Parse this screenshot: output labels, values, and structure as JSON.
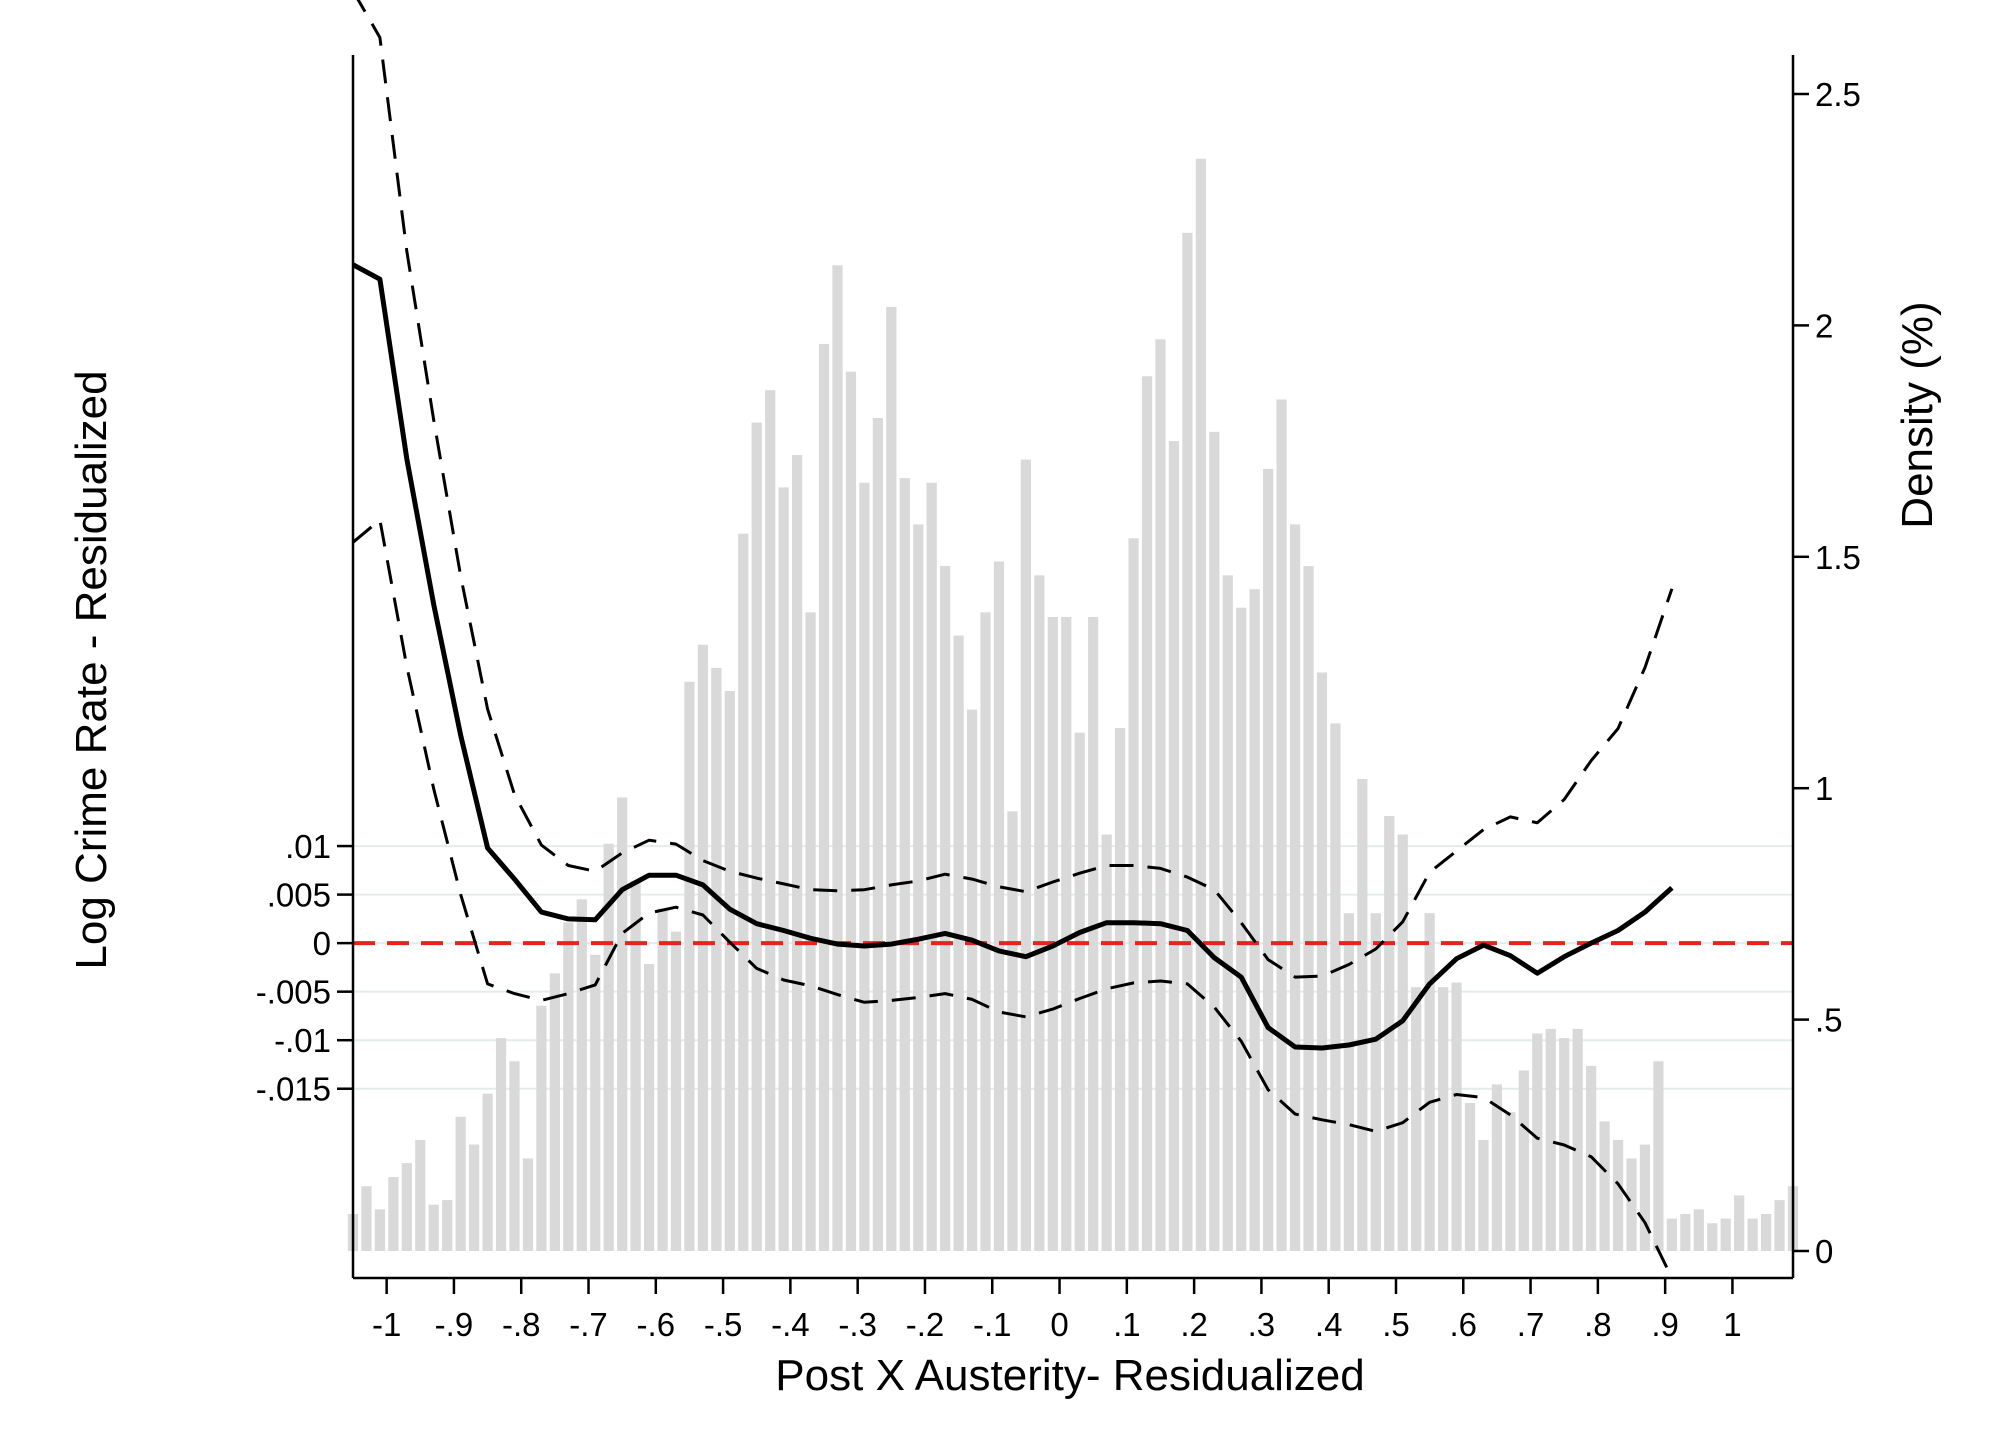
{
  "chart_data": {
    "type": "line",
    "xlabel": "Post X Austerity- Residualized",
    "ylabel": "Log Crime Rate - Residualized",
    "y2label": "Density (%)",
    "xlim": [
      -1.05,
      1.09
    ],
    "ylim": [
      -0.0345,
      0.0915
    ],
    "y2lim": [
      0,
      2.6
    ],
    "x_ticks": [
      {
        "value": -1,
        "label": "-1"
      },
      {
        "value": -0.9,
        "label": "-.9"
      },
      {
        "value": -0.8,
        "label": "-.8"
      },
      {
        "value": -0.7,
        "label": "-.7"
      },
      {
        "value": -0.6,
        "label": "-.6"
      },
      {
        "value": -0.5,
        "label": "-.5"
      },
      {
        "value": -0.4,
        "label": "-.4"
      },
      {
        "value": -0.3,
        "label": "-.3"
      },
      {
        "value": -0.2,
        "label": "-.2"
      },
      {
        "value": -0.1,
        "label": "-.1"
      },
      {
        "value": 0,
        "label": "0"
      },
      {
        "value": 0.1,
        "label": ".1"
      },
      {
        "value": 0.2,
        "label": ".2"
      },
      {
        "value": 0.3,
        "label": ".3"
      },
      {
        "value": 0.4,
        "label": ".4"
      },
      {
        "value": 0.5,
        "label": ".5"
      },
      {
        "value": 0.6,
        "label": ".6"
      },
      {
        "value": 0.7,
        "label": ".7"
      },
      {
        "value": 0.8,
        "label": ".8"
      },
      {
        "value": 0.9,
        "label": ".9"
      },
      {
        "value": 1,
        "label": "1"
      }
    ],
    "y_ticks": [
      {
        "value": 0.01,
        "label": ".01"
      },
      {
        "value": 0.005,
        "label": ".005"
      },
      {
        "value": 0,
        "label": "0"
      },
      {
        "value": -0.005,
        "label": "-.005"
      },
      {
        "value": -0.01,
        "label": "-.01"
      },
      {
        "value": -0.015,
        "label": "-.015"
      }
    ],
    "y2_ticks": [
      {
        "value": 0,
        "label": "0"
      },
      {
        "value": 0.5,
        "label": ".5"
      },
      {
        "value": 1,
        "label": "1"
      },
      {
        "value": 1.5,
        "label": "1.5"
      },
      {
        "value": 2,
        "label": "2"
      },
      {
        "value": 2.5,
        "label": "2.5"
      }
    ],
    "grid": "horizontal at left-axis ticks",
    "reference_line": {
      "y": 0,
      "color": "#e8221e",
      "style": "dashed"
    },
    "colors": {
      "estimate": "#000000",
      "ci": "#000000",
      "bars": "#d9d9d9",
      "grid": "#e3ecec"
    },
    "series": [
      {
        "role": "estimate",
        "style": "solid",
        "points": [
          [
            -1.05,
            0.0699
          ],
          [
            -1.01,
            0.0684
          ],
          [
            -0.97,
            0.0499
          ],
          [
            -0.93,
            0.0349
          ],
          [
            -0.89,
            0.0214
          ],
          [
            -0.85,
            0.0098
          ],
          [
            -0.81,
            0.0066
          ],
          [
            -0.77,
            0.0032
          ],
          [
            -0.73,
            0.0025
          ],
          [
            -0.69,
            0.0024
          ],
          [
            -0.65,
            0.0055
          ],
          [
            -0.61,
            0.007
          ],
          [
            -0.57,
            0.007
          ],
          [
            -0.53,
            0.006
          ],
          [
            -0.49,
            0.0035
          ],
          [
            -0.45,
            0.002
          ],
          [
            -0.41,
            0.0013
          ],
          [
            -0.37,
            0.0005
          ],
          [
            -0.33,
            -0.0001
          ],
          [
            -0.29,
            -0.0003
          ],
          [
            -0.25,
            -0.0001
          ],
          [
            -0.21,
            0.0004
          ],
          [
            -0.17,
            0.001
          ],
          [
            -0.13,
            0.0003
          ],
          [
            -0.09,
            -0.0008
          ],
          [
            -0.05,
            -0.0014
          ],
          [
            -0.01,
            -0.0003
          ],
          [
            0.03,
            0.0011
          ],
          [
            0.07,
            0.0021
          ],
          [
            0.11,
            0.0021
          ],
          [
            0.15,
            0.002
          ],
          [
            0.19,
            0.0013
          ],
          [
            0.23,
            -0.0015
          ],
          [
            0.27,
            -0.0035
          ],
          [
            0.31,
            -0.0087
          ],
          [
            0.35,
            -0.0107
          ],
          [
            0.39,
            -0.0108
          ],
          [
            0.43,
            -0.0105
          ],
          [
            0.47,
            -0.0099
          ],
          [
            0.51,
            -0.008
          ],
          [
            0.55,
            -0.0042
          ],
          [
            0.59,
            -0.0016
          ],
          [
            0.63,
            -0.0002
          ],
          [
            0.67,
            -0.0013
          ],
          [
            0.71,
            -0.0031
          ],
          [
            0.75,
            -0.0014
          ],
          [
            0.79,
            0
          ],
          [
            0.83,
            0.0013
          ],
          [
            0.87,
            0.0032
          ],
          [
            0.91,
            0.0057
          ]
        ]
      },
      {
        "role": "upper_ci",
        "style": "dashed",
        "points": [
          [
            -1.05,
            0.0981
          ],
          [
            -1.01,
            0.0933
          ],
          [
            -0.97,
            0.0713
          ],
          [
            -0.93,
            0.0539
          ],
          [
            -0.89,
            0.0378
          ],
          [
            -0.85,
            0.0241
          ],
          [
            -0.81,
            0.0153
          ],
          [
            -0.77,
            0.0101
          ],
          [
            -0.73,
            0.008
          ],
          [
            -0.69,
            0.0074
          ],
          [
            -0.65,
            0.0093
          ],
          [
            -0.61,
            0.0106
          ],
          [
            -0.57,
            0.0102
          ],
          [
            -0.53,
            0.0085
          ],
          [
            -0.49,
            0.0074
          ],
          [
            -0.45,
            0.0067
          ],
          [
            -0.41,
            0.0061
          ],
          [
            -0.37,
            0.0055
          ],
          [
            -0.33,
            0.0054
          ],
          [
            -0.29,
            0.0055
          ],
          [
            -0.25,
            0.006
          ],
          [
            -0.21,
            0.0064
          ],
          [
            -0.17,
            0.0071
          ],
          [
            -0.13,
            0.0066
          ],
          [
            -0.09,
            0.0058
          ],
          [
            -0.05,
            0.0053
          ],
          [
            -0.01,
            0.0063
          ],
          [
            0.03,
            0.0072
          ],
          [
            0.07,
            0.008
          ],
          [
            0.11,
            0.008
          ],
          [
            0.15,
            0.0077
          ],
          [
            0.19,
            0.0068
          ],
          [
            0.23,
            0.0055
          ],
          [
            0.27,
            0.0021
          ],
          [
            0.31,
            -0.0017
          ],
          [
            0.35,
            -0.0035
          ],
          [
            0.39,
            -0.0034
          ],
          [
            0.43,
            -0.0022
          ],
          [
            0.47,
            -0.0006
          ],
          [
            0.51,
            0.0022
          ],
          [
            0.55,
            0.0073
          ],
          [
            0.59,
            0.0095
          ],
          [
            0.63,
            0.0117
          ],
          [
            0.67,
            0.013
          ],
          [
            0.71,
            0.0124
          ],
          [
            0.75,
            0.0148
          ],
          [
            0.79,
            0.0188
          ],
          [
            0.83,
            0.0221
          ],
          [
            0.87,
            0.0284
          ],
          [
            0.91,
            0.0365
          ]
        ]
      },
      {
        "role": "lower_ci",
        "style": "dashed",
        "points": [
          [
            -1.05,
            0.0413
          ],
          [
            -1.01,
            0.0436
          ],
          [
            -0.97,
            0.0285
          ],
          [
            -0.93,
            0.0159
          ],
          [
            -0.89,
            0.005
          ],
          [
            -0.85,
            -0.0042
          ],
          [
            -0.81,
            -0.0052
          ],
          [
            -0.77,
            -0.0059
          ],
          [
            -0.73,
            -0.0052
          ],
          [
            -0.69,
            -0.0043
          ],
          [
            -0.65,
            0.001
          ],
          [
            -0.61,
            0.0031
          ],
          [
            -0.57,
            0.0037
          ],
          [
            -0.53,
            0.0029
          ],
          [
            -0.49,
            0.0001
          ],
          [
            -0.45,
            -0.0026
          ],
          [
            -0.41,
            -0.0038
          ],
          [
            -0.37,
            -0.0044
          ],
          [
            -0.33,
            -0.0053
          ],
          [
            -0.29,
            -0.0061
          ],
          [
            -0.25,
            -0.0059
          ],
          [
            -0.21,
            -0.0056
          ],
          [
            -0.17,
            -0.0052
          ],
          [
            -0.13,
            -0.0058
          ],
          [
            -0.09,
            -0.0071
          ],
          [
            -0.05,
            -0.0076
          ],
          [
            -0.01,
            -0.0068
          ],
          [
            0.03,
            -0.0057
          ],
          [
            0.07,
            -0.0047
          ],
          [
            0.11,
            -0.0041
          ],
          [
            0.15,
            -0.0039
          ],
          [
            0.19,
            -0.0042
          ],
          [
            0.23,
            -0.0066
          ],
          [
            0.27,
            -0.0101
          ],
          [
            0.31,
            -0.0151
          ],
          [
            0.35,
            -0.0176
          ],
          [
            0.39,
            -0.0182
          ],
          [
            0.43,
            -0.0187
          ],
          [
            0.47,
            -0.0194
          ],
          [
            0.51,
            -0.0185
          ],
          [
            0.55,
            -0.0164
          ],
          [
            0.59,
            -0.0156
          ],
          [
            0.63,
            -0.0159
          ],
          [
            0.67,
            -0.0177
          ],
          [
            0.71,
            -0.0201
          ],
          [
            0.75,
            -0.0208
          ],
          [
            0.79,
            -0.022
          ],
          [
            0.83,
            -0.0248
          ],
          [
            0.87,
            -0.0288
          ],
          [
            0.91,
            -0.0345
          ]
        ]
      }
    ],
    "density_histogram": {
      "axis": "right",
      "bin_width": 0.02,
      "x_start": -1.05,
      "values": [
        0.08,
        0.14,
        0.09,
        0.16,
        0.19,
        0.24,
        0.1,
        0.11,
        0.29,
        0.23,
        0.34,
        0.46,
        0.41,
        0.2,
        0.53,
        0.6,
        0.71,
        0.76,
        0.64,
        0.88,
        0.98,
        0.8,
        0.62,
        0.74,
        0.69,
        1.23,
        1.31,
        1.26,
        1.21,
        1.55,
        1.79,
        1.86,
        1.65,
        1.72,
        1.38,
        1.96,
        2.13,
        1.9,
        1.66,
        1.8,
        2.04,
        1.67,
        1.57,
        1.66,
        1.48,
        1.33,
        1.17,
        1.38,
        1.49,
        0.95,
        1.71,
        1.46,
        1.37,
        1.37,
        1.12,
        1.37,
        0.9,
        1.13,
        1.54,
        1.89,
        1.97,
        1.75,
        2.2,
        2.36,
        1.77,
        1.46,
        1.39,
        1.43,
        1.69,
        1.84,
        1.57,
        1.48,
        1.25,
        1.14,
        0.73,
        1.02,
        0.73,
        0.94,
        0.9,
        0.57,
        0.73,
        0.57,
        0.58,
        0.32,
        0.24,
        0.36,
        0.3,
        0.39,
        0.47,
        0.48,
        0.46,
        0.48,
        0.4,
        0.28,
        0.24,
        0.2,
        0.23,
        0.41,
        0.07,
        0.08,
        0.09,
        0.06,
        0.07,
        0.12,
        0.07,
        0.08,
        0.11,
        0.14
      ]
    }
  }
}
